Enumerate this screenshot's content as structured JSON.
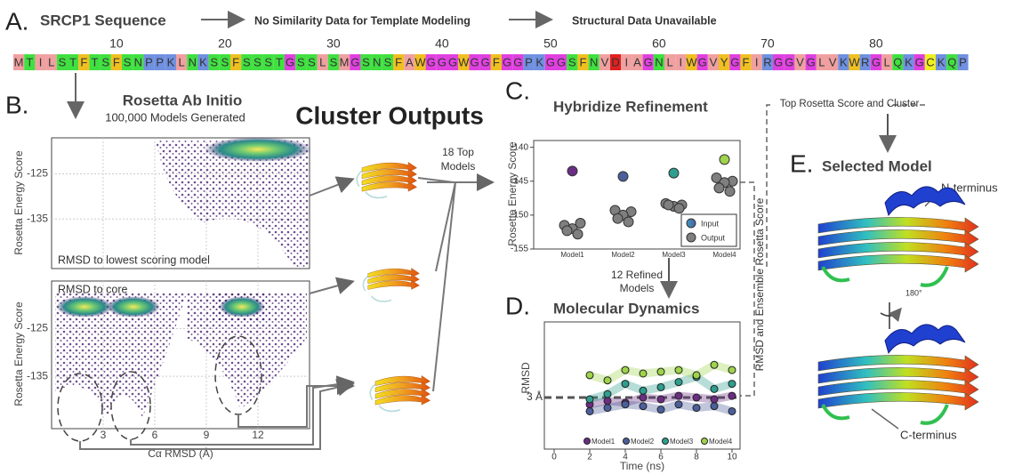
{
  "panel_a": {
    "label": "A.",
    "title": "SRCP1 Sequence",
    "step1": "No Similarity Data  for Template Modeling",
    "step2": "Structural Data Unavailable",
    "ticks": [
      10,
      20,
      30,
      40,
      50,
      60,
      70,
      80
    ],
    "residues": [
      "M",
      "T",
      "I",
      "L",
      "S",
      "T",
      "F",
      "T",
      "S",
      "F",
      "S",
      "N",
      "P",
      "P",
      "K",
      "L",
      "N",
      "K",
      "S",
      "S",
      "F",
      "S",
      "S",
      "S",
      "T",
      "G",
      "S",
      "S",
      "L",
      "S",
      "M",
      "G",
      "S",
      "N",
      "S",
      "F",
      "A",
      "W",
      "G",
      "G",
      "G",
      "W",
      "G",
      "G",
      "F",
      "G",
      "G",
      "P",
      "K",
      "G",
      "G",
      "S",
      "F",
      "N",
      "V",
      "D",
      "I",
      "A",
      "G",
      "N",
      "L",
      "I",
      "W",
      "G",
      "V",
      "Y",
      "G",
      "F",
      "I",
      "R",
      "G",
      "G",
      "V",
      "G",
      "L",
      "V",
      "K",
      "W",
      "R",
      "G",
      "L",
      "Q",
      "K",
      "G",
      "C",
      "K",
      "Q",
      "P"
    ]
  },
  "panel_b": {
    "label": "B.",
    "title": "Rosetta Ab Initio",
    "subtitle": "100,000 Models Generated",
    "y_label": "Rosetta Energy Score",
    "top": {
      "ylim": [
        -146,
        -117
      ],
      "yticks": [
        -125,
        -135
      ],
      "note": "RMSD to lowest scoring model"
    },
    "bottom": {
      "ylim": [
        -146,
        -115
      ],
      "yticks": [
        -125,
        -135
      ],
      "note": "RMSD to core"
    },
    "xlim": [
      0,
      15
    ],
    "xticks": [
      3,
      6,
      9,
      12
    ],
    "x_label": "Cα RMSD (Å)"
  },
  "cluster": {
    "title": "Cluster Outputs",
    "top_models": [
      "18 Top",
      "Models"
    ]
  },
  "panel_c": {
    "label": "C.",
    "title": "Hybridize Refinement",
    "y_label": "Rosetta Energy Score",
    "ylim": [
      -155,
      -139
    ],
    "yticks": [
      -140,
      -145,
      -150,
      -155
    ],
    "categories": [
      "Model1",
      "Model2",
      "Model3",
      "Model4"
    ],
    "series": [
      {
        "name": "Input",
        "colors": [
          "#6b2d83",
          "#4b5f9b",
          "#2e9e8e",
          "#9fd34a"
        ],
        "values": [
          -143.5,
          -144.3,
          -143.8,
          -141.8
        ]
      },
      {
        "name": "Output",
        "color": "#7f7f7f",
        "values": [
          [
            -151.5,
            -151.2,
            -152.0,
            -152.3,
            -152.8
          ],
          [
            -149.3,
            -149.5,
            -150.0,
            -150.5,
            -151.0
          ],
          [
            -148.3,
            -148.5,
            -148.7,
            -148.5,
            -149.0
          ],
          [
            -144.5,
            -145.0,
            -145.2,
            -146.0,
            -146.5
          ]
        ]
      }
    ]
  },
  "refined": [
    "12 Refined",
    "Models"
  ],
  "panel_d": {
    "label": "D.",
    "title": "Molecular Dynamics",
    "y_label": "RMSD",
    "ylim": [
      0,
      7.4
    ],
    "yticks": [
      {
        "value": 3,
        "label": "3 Å"
      }
    ],
    "xlim": [
      -0.55,
      10.45
    ],
    "xticks": [
      0,
      2,
      4,
      6,
      8,
      10
    ],
    "x_label": "Time (ns)",
    "x": [
      2,
      3,
      4,
      5,
      6,
      7,
      8,
      9,
      10
    ],
    "series": [
      {
        "name": "Model1",
        "color": "#6b2d83",
        "values": [
          2.6,
          2.8,
          2.7,
          3.0,
          2.9,
          3.1,
          3.0,
          2.9,
          3.1
        ]
      },
      {
        "name": "Model2",
        "color": "#4b5f9b",
        "values": [
          2.2,
          2.4,
          2.6,
          2.5,
          2.3,
          2.6,
          2.4,
          2.5,
          2.2
        ]
      },
      {
        "name": "Model3",
        "color": "#2e9e8e",
        "values": [
          2.9,
          3.2,
          3.8,
          3.4,
          3.6,
          3.9,
          4.2,
          3.5,
          3.8
        ]
      },
      {
        "name": "Model4",
        "color": "#9fd34a",
        "values": [
          4.3,
          4.0,
          4.6,
          4.4,
          4.5,
          4.6,
          4.3,
          4.9,
          4.6
        ]
      }
    ]
  },
  "flow": {
    "top_score": "Top Rosetta Score and Cluster",
    "ensemble": "RMSD and Ensemble Rosetta Score"
  },
  "panel_e": {
    "label": "E.",
    "title": "Selected Model",
    "n_terminus": "N-terminus",
    "rotation": "180°",
    "c_terminus": "C-terminus"
  }
}
